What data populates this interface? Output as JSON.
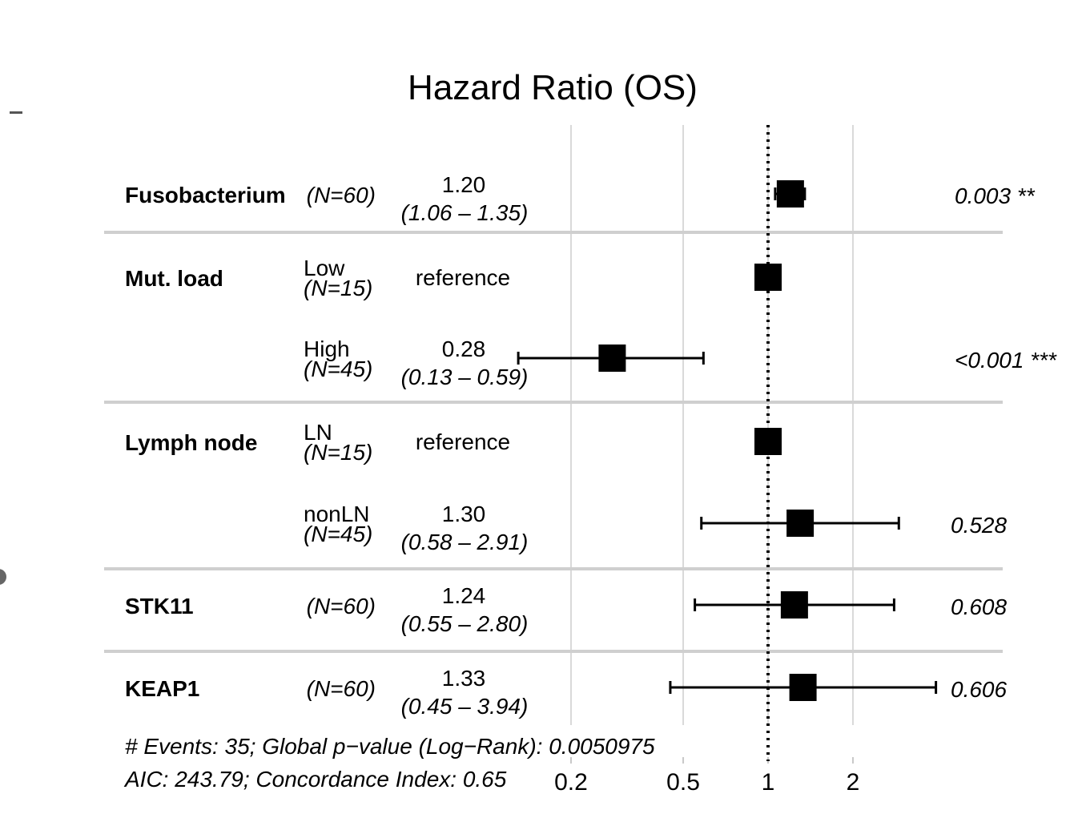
{
  "chart_data": {
    "type": "forest",
    "title": "Hazard Ratio (OS)",
    "xscale": "log",
    "xlim": [
      0.1,
      4.5
    ],
    "reference_line": 1,
    "x_ticks": [
      "0.2",
      "0.5",
      "1",
      "2"
    ],
    "grid": true,
    "rows": [
      {
        "variable": "Fusobacterium",
        "level": "",
        "n_label": "(N=60)",
        "hr": 1.2,
        "lower": 1.06,
        "upper": 1.35,
        "estimate_text": "1.20",
        "ci_text": "(1.06 – 1.35)",
        "p_text": "0.003 **"
      },
      {
        "variable": "Mut. load",
        "level": "Low",
        "n_label": "(N=15)",
        "hr": 1.0,
        "lower": null,
        "upper": null,
        "estimate_text": "reference",
        "ci_text": "",
        "p_text": ""
      },
      {
        "variable": "",
        "level": "High",
        "n_label": "(N=45)",
        "hr": 0.28,
        "lower": 0.13,
        "upper": 0.59,
        "estimate_text": "0.28",
        "ci_text": "(0.13 – 0.59)",
        "p_text": "<0.001 ***"
      },
      {
        "variable": "Lymph node",
        "level": "LN",
        "n_label": "(N=15)",
        "hr": 1.0,
        "lower": null,
        "upper": null,
        "estimate_text": "reference",
        "ci_text": "",
        "p_text": ""
      },
      {
        "variable": "",
        "level": "nonLN",
        "n_label": "(N=45)",
        "hr": 1.3,
        "lower": 0.58,
        "upper": 2.91,
        "estimate_text": "1.30",
        "ci_text": "(0.58 – 2.91)",
        "p_text": "0.528"
      },
      {
        "variable": "STK11",
        "level": "",
        "n_label": "(N=60)",
        "hr": 1.24,
        "lower": 0.55,
        "upper": 2.8,
        "estimate_text": "1.24",
        "ci_text": "(0.55 – 2.80)",
        "p_text": "0.608"
      },
      {
        "variable": "KEAP1",
        "level": "",
        "n_label": "(N=60)",
        "hr": 1.33,
        "lower": 0.45,
        "upper": 3.94,
        "estimate_text": "1.33",
        "ci_text": "(0.45 – 3.94)",
        "p_text": "0.606"
      }
    ],
    "footer": [
      "# Events: 35; Global p−value (Log−Rank): 0.0050975",
      "AIC: 243.79; Concordance Index: 0.65"
    ]
  }
}
